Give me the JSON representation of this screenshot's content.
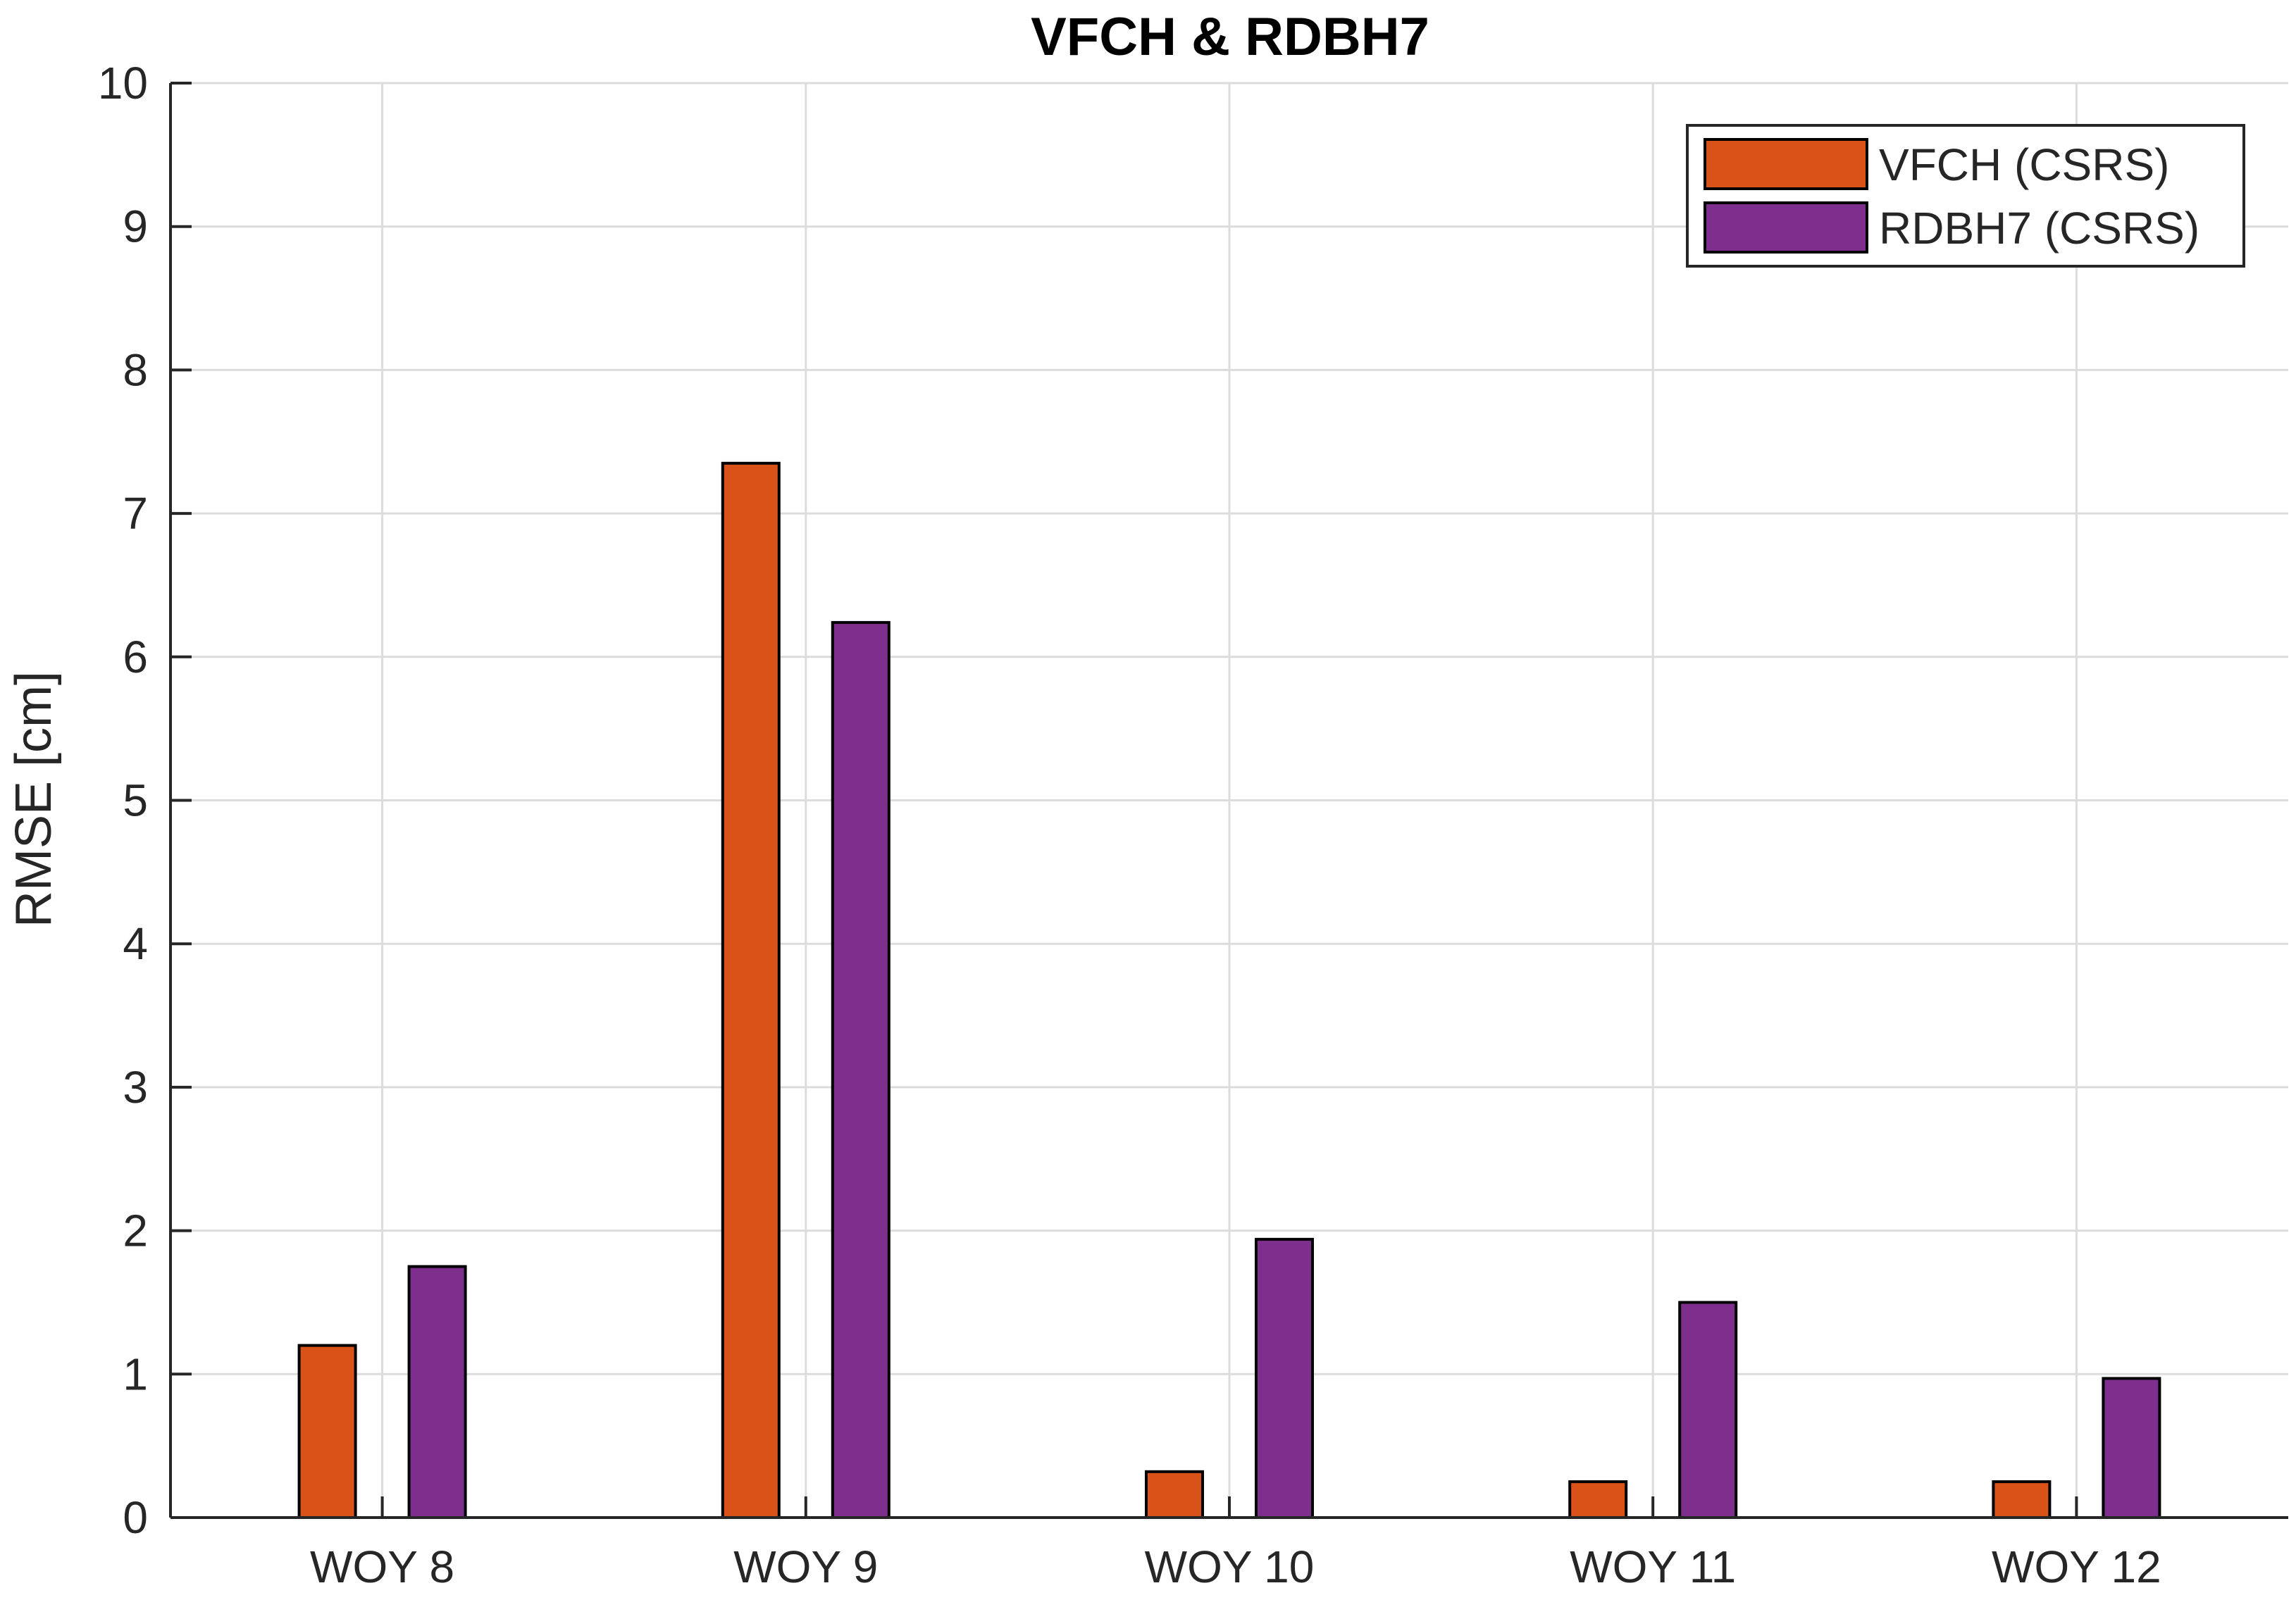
{
  "chart_data": {
    "type": "bar",
    "title": "VFCH & RDBH7",
    "xlabel": "",
    "ylabel": "RMSE [cm]",
    "ylim": [
      0,
      10
    ],
    "yticks": [
      0,
      1,
      2,
      3,
      4,
      5,
      6,
      7,
      8,
      9,
      10
    ],
    "grid": true,
    "legend_position": "top-right",
    "categories": [
      "WOY 8",
      "WOY 9",
      "WOY 10",
      "WOY 11",
      "WOY 12"
    ],
    "series": [
      {
        "name": "VFCH (CSRS)",
        "color": "#D95319",
        "values": [
          1.2,
          7.35,
          0.32,
          0.25,
          0.25
        ]
      },
      {
        "name": "RDBH7 (CSRS)",
        "color": "#7E2F8E",
        "values": [
          1.75,
          6.24,
          1.94,
          1.5,
          0.97
        ]
      }
    ]
  }
}
